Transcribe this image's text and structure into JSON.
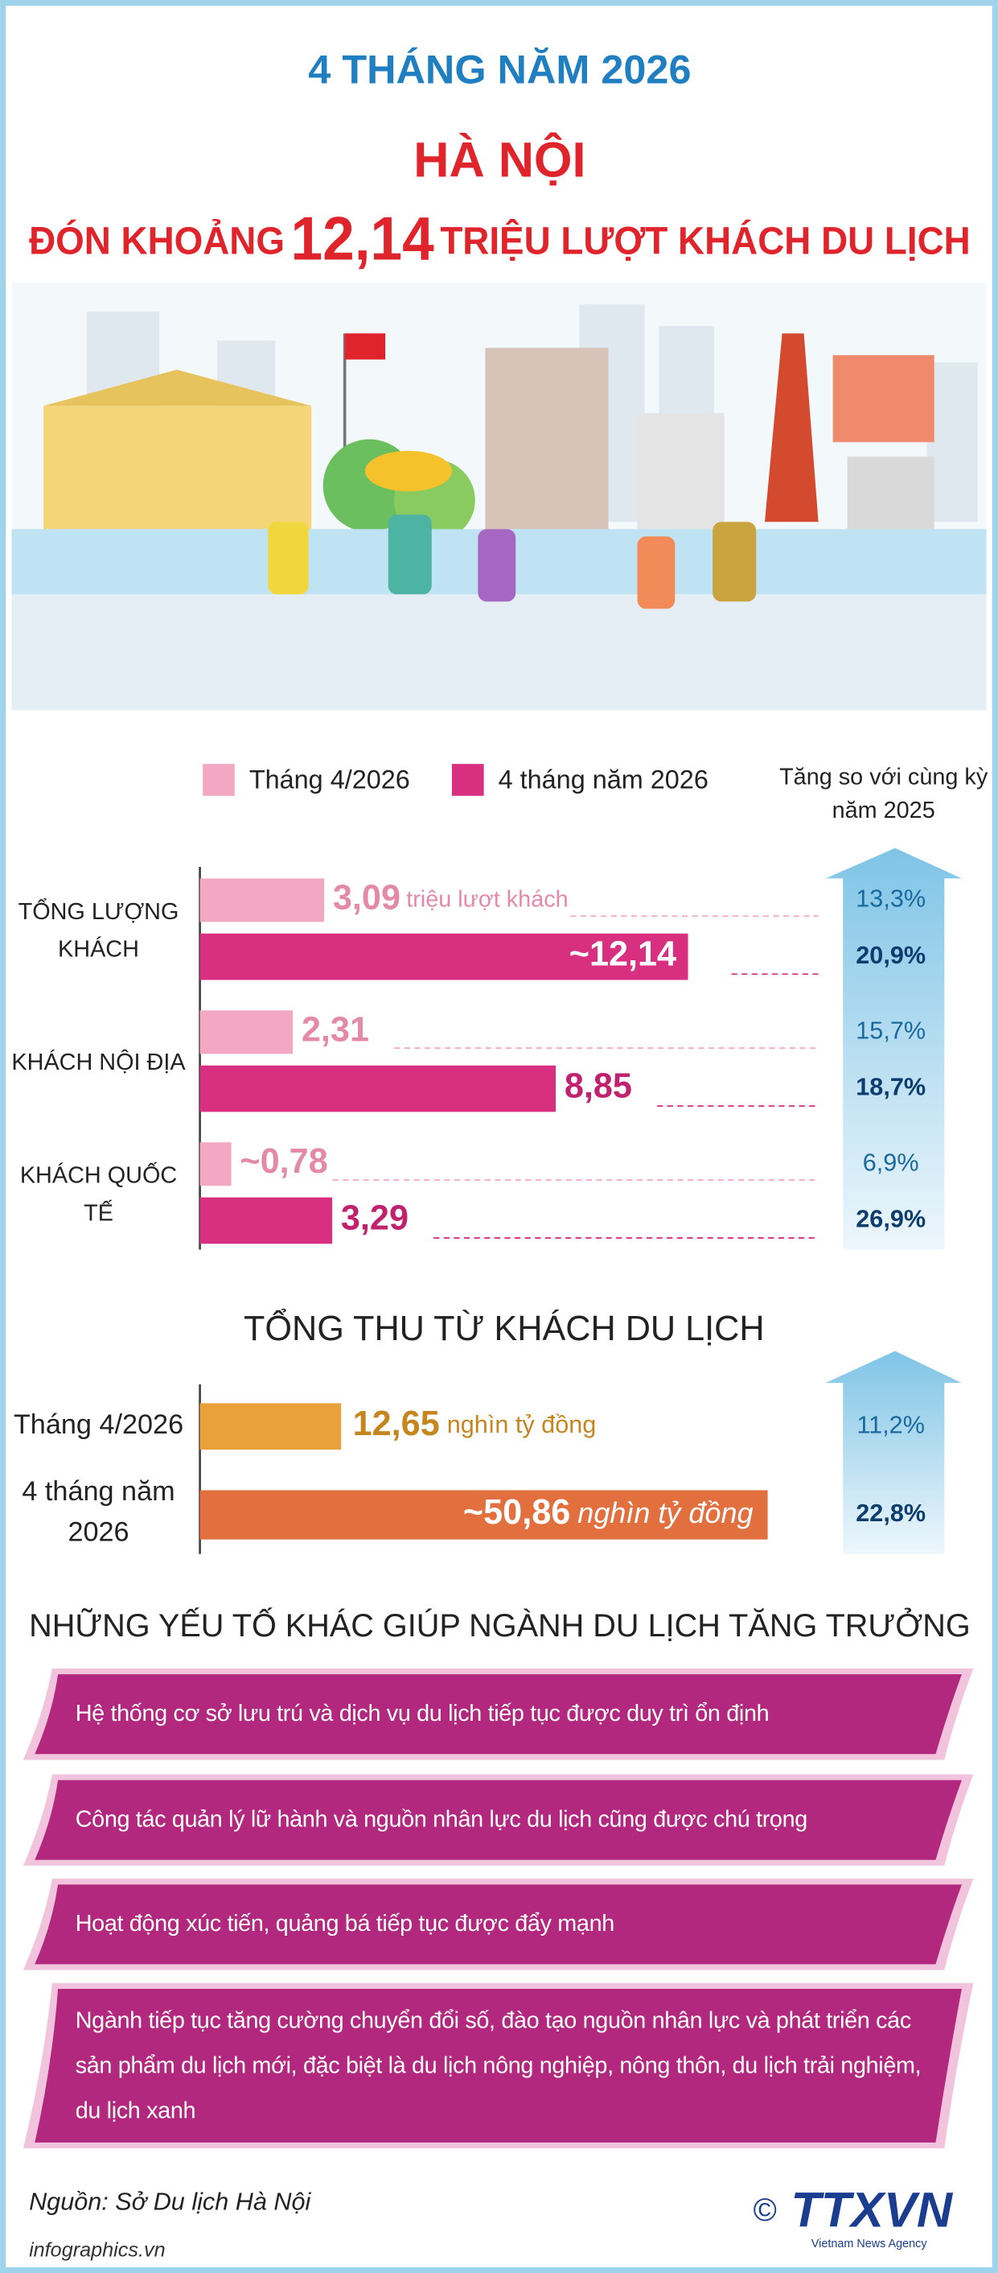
{
  "header": {
    "period": "4 THÁNG NĂM 2026",
    "city": "HÀ NỘI",
    "title_prefix": "ĐÓN KHOẢNG",
    "title_number": "12,14",
    "title_suffix": "TRIỆU LƯỢT KHÁCH DU LỊCH"
  },
  "chart_data": [
    {
      "type": "bar",
      "orientation": "horizontal",
      "categories": [
        "TỔNG LƯỢNG KHÁCH",
        "KHÁCH NỘI ĐỊA",
        "KHÁCH QUỐC TẾ"
      ],
      "series": [
        {
          "name": "Tháng 4/2026",
          "color": "#f2a7c2",
          "values": [
            3.09,
            2.31,
            0.78
          ],
          "value_labels": [
            "3,09",
            "2,31",
            "~0,78"
          ]
        },
        {
          "name": "4 tháng năm 2026",
          "color": "#d82f81",
          "values": [
            12.14,
            8.85,
            3.29
          ],
          "value_labels": [
            "~12,14",
            "8,85",
            "3,29"
          ]
        }
      ],
      "unit_label": "triệu lượt khách",
      "growth_title": "Tăng so với cùng kỳ năm 2025",
      "growth": [
        [
          "13,3%",
          "20,9%"
        ],
        [
          "15,7%",
          "18,7%"
        ],
        [
          "6,9%",
          "26,9%"
        ]
      ]
    },
    {
      "type": "bar",
      "orientation": "horizontal",
      "title": "TỔNG THU TỪ KHÁCH DU LỊCH",
      "categories": [
        "Tháng 4/2026",
        "4 tháng năm 2026"
      ],
      "values": [
        12.65,
        50.86
      ],
      "value_labels": [
        "12,65",
        "~50,86"
      ],
      "colors": [
        "#e9a23b",
        "#e2703f"
      ],
      "unit_label": "nghìn tỷ đồng",
      "growth": [
        "11,2%",
        "22,8%"
      ]
    }
  ],
  "factors": {
    "title": "NHỮNG YẾU TỐ KHÁC GIÚP NGÀNH DU LỊCH TĂNG TRƯỞNG",
    "items": [
      "Hệ thống cơ sở lưu trú và dịch vụ du lịch tiếp tục được duy trì ổn định",
      "Công tác quản lý lữ hành và nguồn nhân lực du lịch cũng được chú trọng",
      "Hoạt động xúc tiến, quảng bá tiếp tục được đẩy mạnh",
      "Ngành tiếp tục tăng cường chuyển đổi số, đào tạo nguồn nhân lực và phát triển các sản phẩm du lịch mới, đặc biệt là du lịch nông nghiệp, nông thôn, du lịch trải nghiệm, du lịch xanh"
    ]
  },
  "footer": {
    "source": "Nguồn: Sở Du lịch Hà Nội",
    "website": "infographics.vn",
    "copyright": "©",
    "logo": "TTXVN",
    "agency": "Vietnam News Agency"
  }
}
